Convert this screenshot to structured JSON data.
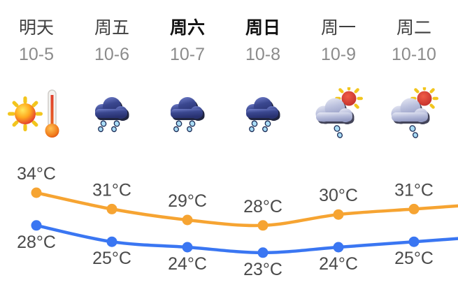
{
  "columns": [
    {
      "day": "明天",
      "date": "10-5",
      "icon": "hot",
      "bold": false
    },
    {
      "day": "周五",
      "date": "10-6",
      "icon": "rain",
      "bold": false
    },
    {
      "day": "周六",
      "date": "10-7",
      "icon": "rain",
      "bold": true
    },
    {
      "day": "周日",
      "date": "10-8",
      "icon": "rain",
      "bold": true
    },
    {
      "day": "周一",
      "date": "10-9",
      "icon": "shower",
      "bold": false
    },
    {
      "day": "周二",
      "date": "10-10",
      "icon": "shower",
      "bold": false
    }
  ],
  "icons": {
    "hot": "sun-with-thermometer",
    "rain": "dark-cloud-with-raindrops",
    "shower": "sun-behind-cloud-with-raindrops"
  },
  "colors": {
    "day_text": "#3e3e3e",
    "day_text_weekend": "#121212",
    "date_text": "#8b8b8b",
    "temp_label": "#4a4a4a",
    "high_line": "#F6A432",
    "low_line": "#3A76F2"
  },
  "chart_data": {
    "type": "line",
    "categories": [
      "明天 10-5",
      "周五 10-6",
      "周六 10-7",
      "周日 10-8",
      "周一 10-9",
      "周二 10-10"
    ],
    "unit": "°C",
    "ylim": [
      23,
      34
    ],
    "grid": false,
    "legend": "none",
    "label_color": "#4a4a4a",
    "series": [
      {
        "name": "high",
        "values": [
          34,
          31,
          29,
          28,
          30,
          31
        ],
        "color": "#F6A432"
      },
      {
        "name": "low",
        "values": [
          28,
          25,
          24,
          23,
          24,
          25
        ],
        "color": "#3A76F2"
      }
    ]
  }
}
